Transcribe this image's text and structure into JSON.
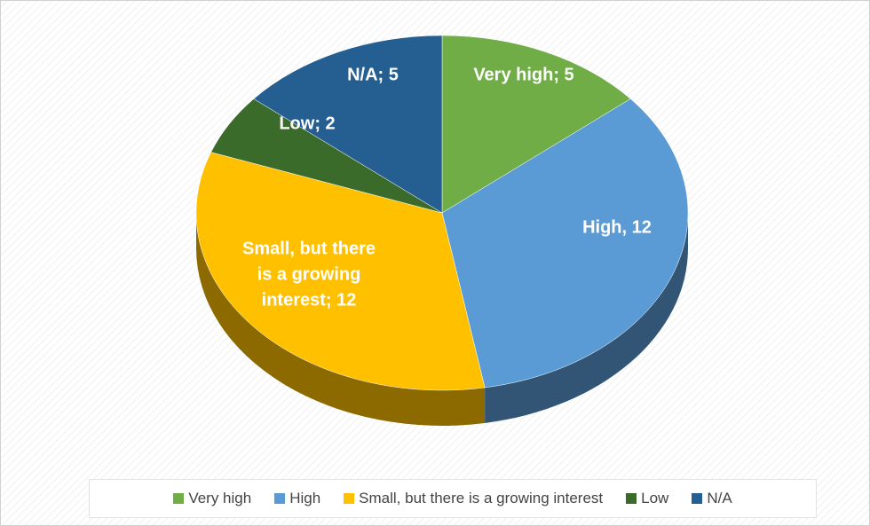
{
  "chart_data": {
    "type": "pie",
    "categories": [
      "Very high",
      "High",
      "Small, but there is a growing interest",
      "Low",
      "N/A"
    ],
    "values": [
      5,
      12,
      12,
      2,
      5
    ],
    "value_labels": [
      "Very high; 5",
      "High, 12",
      "Small, but there is a growing interest;  12",
      "Low; 2",
      "N/A; 5"
    ],
    "colors": [
      "#70ad47",
      "#5b9bd5",
      "#ffc000",
      "#3b6b2a",
      "#255e91"
    ],
    "legend": "bottom"
  }
}
